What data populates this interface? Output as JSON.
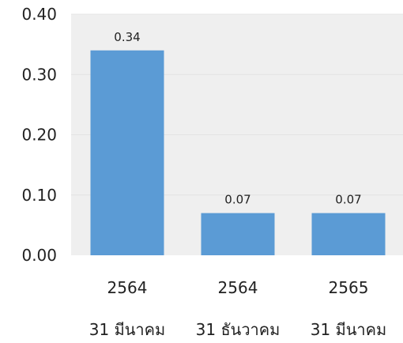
{
  "chart_data": {
    "type": "bar",
    "categories": [
      {
        "year": "2564",
        "date": "31 มีนาคม"
      },
      {
        "year": "2564",
        "date": "31 ธันวาคม"
      },
      {
        "year": "2565",
        "date": "31 มีนาคม"
      }
    ],
    "values": [
      0.34,
      0.07,
      0.07
    ],
    "data_labels": [
      "0.34",
      "0.07",
      "0.07"
    ],
    "yticks": [
      "0.00",
      "0.10",
      "0.20",
      "0.30",
      "0.40"
    ],
    "ylim": [
      0,
      0.4
    ],
    "grid": true,
    "colors": {
      "bar": "#5b9bd5",
      "plot_background": "#efefef",
      "gridline": "#e4e4e4"
    }
  }
}
